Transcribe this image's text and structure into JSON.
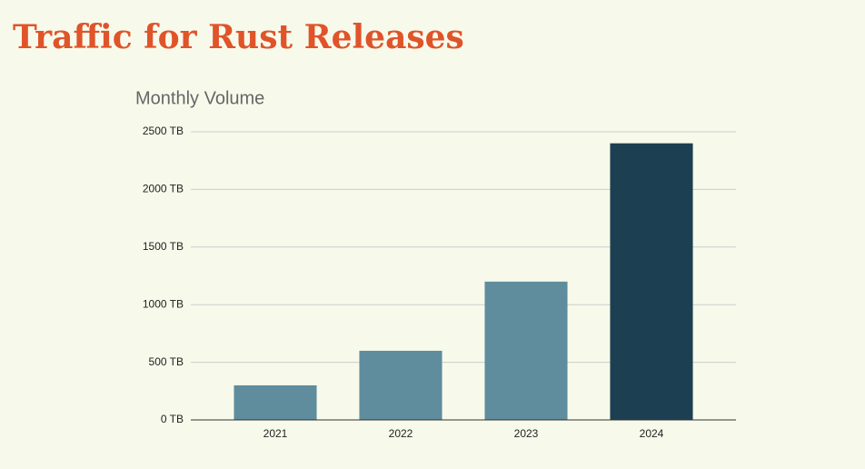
{
  "chart_data": {
    "type": "bar",
    "page_title": "Traffic for Rust Releases",
    "title": "Monthly Volume",
    "categories": [
      "2021",
      "2022",
      "2023",
      "2024"
    ],
    "values": [
      300,
      600,
      1200,
      2400
    ],
    "colors": [
      "#5f8d9e",
      "#5f8d9e",
      "#5f8d9e",
      "#1d3f52"
    ],
    "ylim": [
      0,
      2500
    ],
    "yticks": [
      {
        "value": 0,
        "label": "0 TB"
      },
      {
        "value": 500,
        "label": "500 TB"
      },
      {
        "value": 1000,
        "label": "1000 TB"
      },
      {
        "value": 1500,
        "label": "1500 TB"
      },
      {
        "value": 2000,
        "label": "2000 TB"
      },
      {
        "value": 2500,
        "label": "2500 TB"
      }
    ],
    "grid": true
  }
}
